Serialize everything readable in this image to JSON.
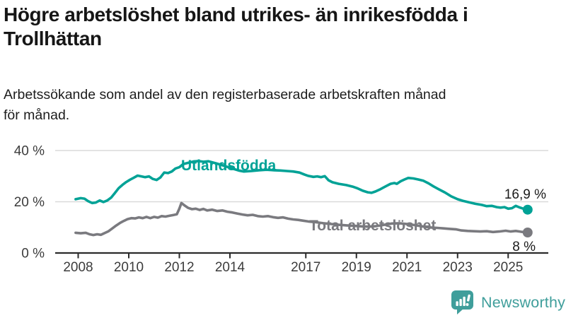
{
  "title": {
    "line1": "Högre arbetslöshet bland utrikes- än inrikesfödda i",
    "line2": "Trollhättan"
  },
  "subtitle": {
    "line1": "Arbetssökande som andel av den registerbaserade arbetskraften månad",
    "line2": "för månad."
  },
  "colors": {
    "foreign_series": "#00a296",
    "total_series": "#7a7a7f",
    "grid": "#dadada",
    "axis": "#2b2b2b",
    "tick_label": "#3c3c3c",
    "value_label": "#1a1a1a",
    "logo": "#3f9e9b"
  },
  "logo": {
    "text": "Newsworthy"
  },
  "chart_data": {
    "type": "line",
    "title": "Arbetssökande som andel av den registerbaserade arbetskraften månad för månad",
    "grid": true,
    "y_axis": {
      "ticks": [
        40,
        20,
        0
      ],
      "suffix": " %",
      "range": [
        0,
        44
      ]
    },
    "x_axis": {
      "ticks": [
        2008,
        2010,
        2012,
        2014,
        2017,
        2019,
        2021,
        2023,
        2025
      ],
      "range": [
        2007.1,
        2026.6
      ]
    },
    "series": [
      {
        "id": "utlandsfodda",
        "name": "Utlandsfödda",
        "end_label": "16,9 %",
        "label_pos": {
          "x": 256,
          "y": 241
        },
        "end_label_pos": {
          "x": 772,
          "y": 281
        },
        "points": [
          [
            2007.9,
            21.0
          ],
          [
            2008.1,
            21.4
          ],
          [
            2008.25,
            21.2
          ],
          [
            2008.4,
            20.2
          ],
          [
            2008.55,
            19.5
          ],
          [
            2008.7,
            19.7
          ],
          [
            2008.85,
            20.5
          ],
          [
            2009.0,
            19.9
          ],
          [
            2009.15,
            20.5
          ],
          [
            2009.3,
            21.6
          ],
          [
            2009.45,
            23.4
          ],
          [
            2009.6,
            25.3
          ],
          [
            2009.75,
            26.6
          ],
          [
            2009.9,
            27.7
          ],
          [
            2010.05,
            28.6
          ],
          [
            2010.2,
            29.4
          ],
          [
            2010.35,
            30.2
          ],
          [
            2010.5,
            29.9
          ],
          [
            2010.65,
            29.6
          ],
          [
            2010.8,
            29.9
          ],
          [
            2010.95,
            28.9
          ],
          [
            2011.1,
            28.5
          ],
          [
            2011.25,
            29.5
          ],
          [
            2011.4,
            31.4
          ],
          [
            2011.55,
            31.2
          ],
          [
            2011.7,
            31.8
          ],
          [
            2011.85,
            33.0
          ],
          [
            2012.0,
            33.5
          ],
          [
            2012.15,
            34.7
          ],
          [
            2012.35,
            35.2
          ],
          [
            2012.55,
            35.7
          ],
          [
            2012.75,
            35.9
          ],
          [
            2012.95,
            35.6
          ],
          [
            2013.15,
            35.8
          ],
          [
            2013.45,
            35.0
          ],
          [
            2013.75,
            34.1
          ],
          [
            2014.05,
            33.1
          ],
          [
            2014.35,
            32.2
          ],
          [
            2014.55,
            31.8
          ],
          [
            2014.85,
            32.0
          ],
          [
            2015.15,
            32.3
          ],
          [
            2015.45,
            32.5
          ],
          [
            2015.75,
            32.3
          ],
          [
            2016.0,
            32.2
          ],
          [
            2016.25,
            32.0
          ],
          [
            2016.5,
            31.8
          ],
          [
            2016.75,
            31.4
          ],
          [
            2016.95,
            30.6
          ],
          [
            2017.1,
            30.1
          ],
          [
            2017.3,
            29.7
          ],
          [
            2017.45,
            29.9
          ],
          [
            2017.6,
            29.6
          ],
          [
            2017.75,
            30.0
          ],
          [
            2017.9,
            28.4
          ],
          [
            2018.05,
            27.6
          ],
          [
            2018.3,
            27.0
          ],
          [
            2018.6,
            26.5
          ],
          [
            2018.85,
            25.9
          ],
          [
            2019.05,
            25.2
          ],
          [
            2019.25,
            24.3
          ],
          [
            2019.45,
            23.7
          ],
          [
            2019.6,
            23.5
          ],
          [
            2019.75,
            24.0
          ],
          [
            2019.95,
            24.9
          ],
          [
            2020.15,
            26.0
          ],
          [
            2020.35,
            27.0
          ],
          [
            2020.5,
            27.3
          ],
          [
            2020.6,
            27.0
          ],
          [
            2020.75,
            28.0
          ],
          [
            2020.9,
            28.7
          ],
          [
            2021.05,
            29.3
          ],
          [
            2021.25,
            29.1
          ],
          [
            2021.45,
            28.7
          ],
          [
            2021.65,
            28.2
          ],
          [
            2021.85,
            27.2
          ],
          [
            2022.05,
            26.0
          ],
          [
            2022.25,
            24.9
          ],
          [
            2022.5,
            23.6
          ],
          [
            2022.75,
            22.1
          ],
          [
            2023.0,
            21.0
          ],
          [
            2023.2,
            20.4
          ],
          [
            2023.45,
            19.8
          ],
          [
            2023.7,
            19.2
          ],
          [
            2023.95,
            18.8
          ],
          [
            2024.15,
            18.3
          ],
          [
            2024.35,
            18.4
          ],
          [
            2024.55,
            17.9
          ],
          [
            2024.7,
            17.7
          ],
          [
            2024.85,
            17.9
          ],
          [
            2025.0,
            17.3
          ],
          [
            2025.15,
            17.5
          ],
          [
            2025.3,
            18.4
          ],
          [
            2025.45,
            17.8
          ],
          [
            2025.6,
            17.3
          ],
          [
            2025.77,
            16.9
          ]
        ]
      },
      {
        "id": "total-arbetsloshet",
        "name": "Total arbetslöshet",
        "end_label": "8 %",
        "label_pos": {
          "x": 437,
          "y": 326
        },
        "end_label_pos": {
          "x": 757,
          "y": 355
        },
        "points": [
          [
            2007.9,
            7.9
          ],
          [
            2008.1,
            7.7
          ],
          [
            2008.3,
            7.9
          ],
          [
            2008.45,
            7.3
          ],
          [
            2008.6,
            7.0
          ],
          [
            2008.75,
            7.3
          ],
          [
            2008.9,
            7.1
          ],
          [
            2009.05,
            7.8
          ],
          [
            2009.2,
            8.5
          ],
          [
            2009.35,
            9.6
          ],
          [
            2009.5,
            10.7
          ],
          [
            2009.65,
            11.7
          ],
          [
            2009.8,
            12.5
          ],
          [
            2009.95,
            13.2
          ],
          [
            2010.1,
            13.6
          ],
          [
            2010.25,
            13.5
          ],
          [
            2010.4,
            13.9
          ],
          [
            2010.55,
            13.6
          ],
          [
            2010.7,
            14.1
          ],
          [
            2010.85,
            13.6
          ],
          [
            2011.0,
            14.1
          ],
          [
            2011.15,
            13.8
          ],
          [
            2011.3,
            14.4
          ],
          [
            2011.45,
            14.2
          ],
          [
            2011.6,
            14.5
          ],
          [
            2011.75,
            14.8
          ],
          [
            2011.9,
            15.1
          ],
          [
            2012.0,
            17.3
          ],
          [
            2012.08,
            19.5
          ],
          [
            2012.2,
            18.6
          ],
          [
            2012.35,
            17.6
          ],
          [
            2012.5,
            17.1
          ],
          [
            2012.65,
            17.3
          ],
          [
            2012.8,
            16.8
          ],
          [
            2012.95,
            17.2
          ],
          [
            2013.1,
            16.6
          ],
          [
            2013.3,
            16.9
          ],
          [
            2013.5,
            16.4
          ],
          [
            2013.7,
            16.6
          ],
          [
            2013.9,
            16.1
          ],
          [
            2014.1,
            15.8
          ],
          [
            2014.3,
            15.4
          ],
          [
            2014.5,
            15.0
          ],
          [
            2014.7,
            14.7
          ],
          [
            2014.9,
            14.9
          ],
          [
            2015.1,
            14.4
          ],
          [
            2015.3,
            14.2
          ],
          [
            2015.5,
            14.4
          ],
          [
            2015.7,
            14.0
          ],
          [
            2015.9,
            13.7
          ],
          [
            2016.1,
            13.9
          ],
          [
            2016.3,
            13.4
          ],
          [
            2016.5,
            13.1
          ],
          [
            2016.7,
            12.9
          ],
          [
            2016.9,
            12.6
          ],
          [
            2017.1,
            12.3
          ],
          [
            2017.4,
            12.0
          ],
          [
            2017.7,
            11.6
          ],
          [
            2018.0,
            11.3
          ],
          [
            2018.3,
            11.0
          ],
          [
            2018.6,
            10.8
          ],
          [
            2018.9,
            10.6
          ],
          [
            2019.2,
            10.4
          ],
          [
            2019.5,
            10.3
          ],
          [
            2019.8,
            10.5
          ],
          [
            2020.1,
            11.0
          ],
          [
            2020.4,
            11.5
          ],
          [
            2020.7,
            11.6
          ],
          [
            2021.0,
            11.3
          ],
          [
            2021.3,
            10.9
          ],
          [
            2021.6,
            10.4
          ],
          [
            2021.9,
            10.0
          ],
          [
            2022.2,
            9.8
          ],
          [
            2022.45,
            9.6
          ],
          [
            2022.7,
            9.4
          ],
          [
            2022.95,
            9.2
          ],
          [
            2023.15,
            8.8
          ],
          [
            2023.4,
            8.6
          ],
          [
            2023.65,
            8.5
          ],
          [
            2023.9,
            8.4
          ],
          [
            2024.15,
            8.5
          ],
          [
            2024.4,
            8.2
          ],
          [
            2024.65,
            8.4
          ],
          [
            2024.9,
            8.7
          ],
          [
            2025.1,
            8.4
          ],
          [
            2025.3,
            8.6
          ],
          [
            2025.5,
            8.3
          ],
          [
            2025.77,
            8.0
          ]
        ]
      }
    ]
  }
}
